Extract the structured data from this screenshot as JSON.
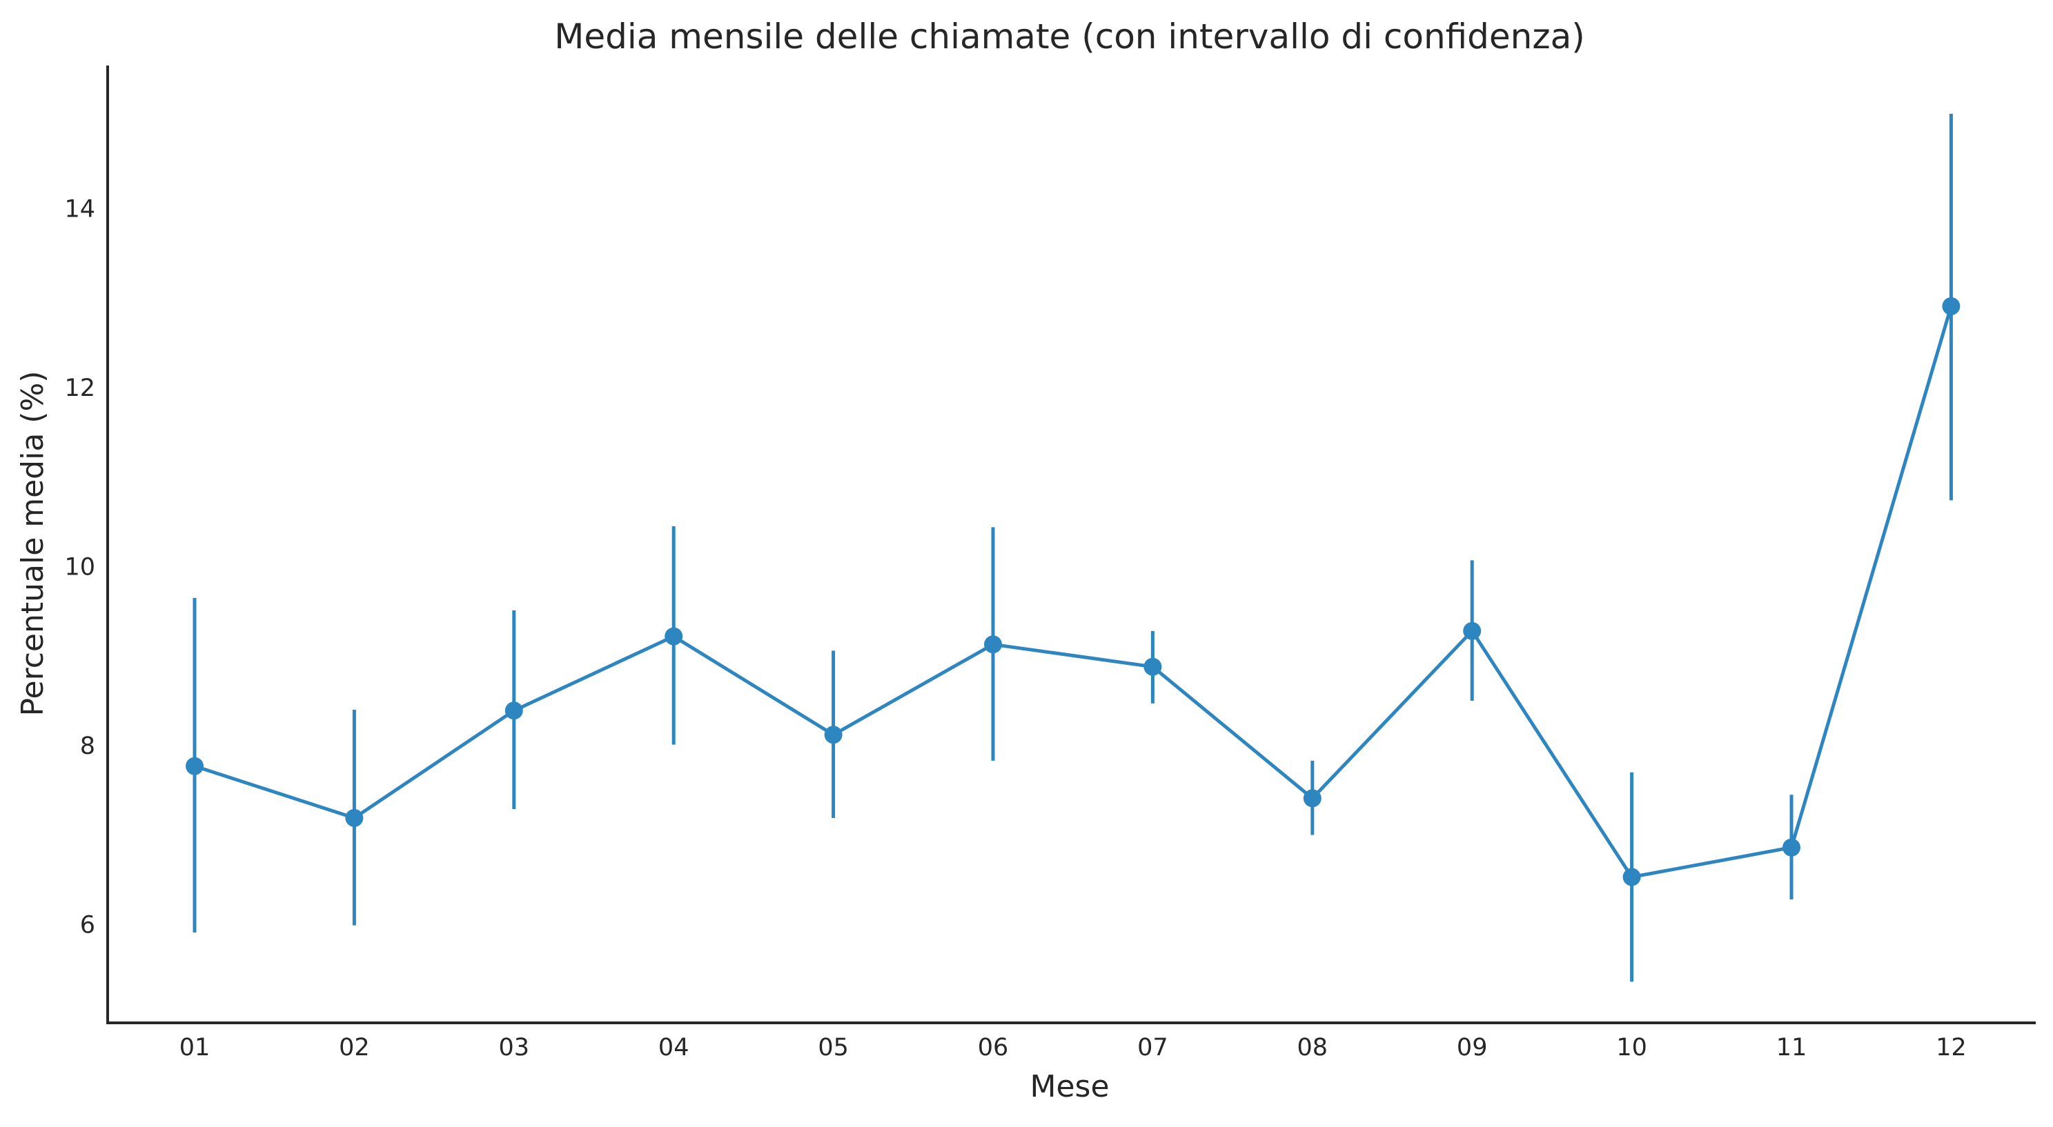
{
  "chart_data": {
    "type": "line",
    "title": "Media mensile delle chiamate (con intervallo di confidenza)",
    "xlabel": "Mese",
    "ylabel": "Percentuale media (%)",
    "categories": [
      "01",
      "02",
      "03",
      "04",
      "05",
      "06",
      "07",
      "08",
      "09",
      "10",
      "11",
      "12"
    ],
    "yticks": [
      "6",
      "8",
      "10",
      "12",
      "14"
    ],
    "ylim": [
      4.9,
      15.6
    ],
    "grid": false,
    "legend": "none",
    "series": [
      {
        "color": "#2e86c1",
        "values": [
          7.77,
          7.19,
          8.39,
          9.22,
          8.12,
          9.13,
          8.88,
          7.41,
          9.28,
          6.53,
          6.86,
          12.91
        ],
        "ci_low": [
          5.91,
          5.99,
          7.29,
          8.01,
          7.19,
          7.83,
          8.47,
          7.0,
          8.5,
          5.36,
          6.28,
          10.74
        ],
        "ci_high": [
          9.65,
          8.4,
          9.51,
          10.45,
          9.06,
          10.44,
          9.28,
          7.83,
          10.07,
          7.7,
          7.45,
          15.06
        ]
      }
    ]
  }
}
